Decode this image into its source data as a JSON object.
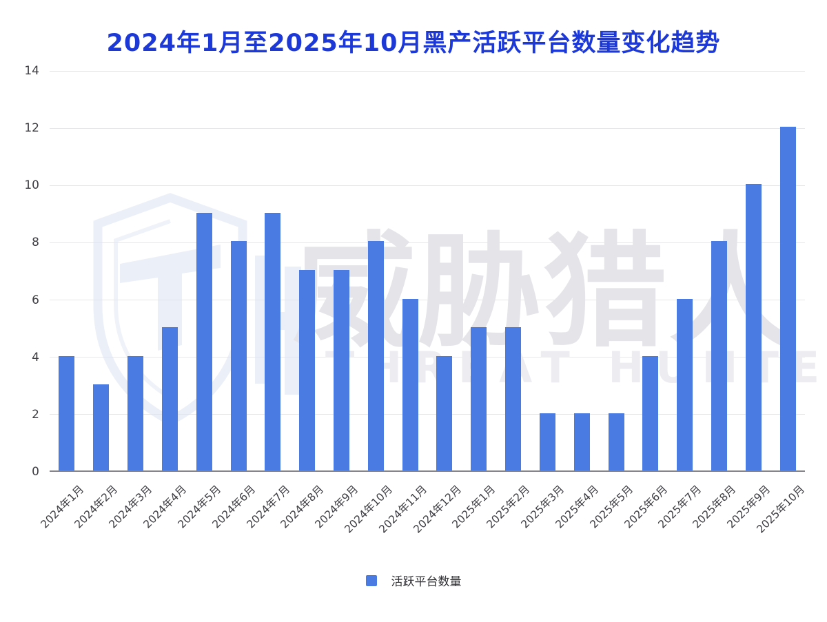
{
  "title": "2024年1月至2025年10月黑产活跃平台数量变化趋势",
  "colors": {
    "title": "#1C38D6",
    "bar": "#4A7BE3",
    "axis_label": "#3D3D42",
    "gridline": "#E6E6E9",
    "baseline": "#84848A"
  },
  "watermark": {
    "cn": "威胁猎人",
    "en": "THREAT HUNTER",
    "logo": "threat-hunter-shield"
  },
  "legend": {
    "label": "活跃平台数量"
  },
  "chart_data": {
    "type": "bar",
    "title": "2024年1月至2025年10月黑产活跃平台数量变化趋势",
    "categories": [
      "2024年1月",
      "2024年2月",
      "2024年3月",
      "2024年4月",
      "2024年5月",
      "2024年6月",
      "2024年7月",
      "2024年8月",
      "2024年9月",
      "2024年10月",
      "2024年11月",
      "2024年12月",
      "2025年1月",
      "2025年2月",
      "2025年3月",
      "2025年4月",
      "2025年5月",
      "2025年6月",
      "2025年7月",
      "2025年8月",
      "2025年9月",
      "2025年10月"
    ],
    "values": [
      4,
      3,
      4,
      5,
      9,
      8,
      9,
      7,
      7,
      8,
      6,
      4,
      5,
      5,
      2,
      2,
      2,
      4,
      6,
      8,
      10,
      12
    ],
    "series_name": "活跃平台数量",
    "xlabel": "",
    "ylabel": "",
    "ylim": [
      0,
      14
    ],
    "yticks": [
      0,
      2,
      4,
      6,
      8,
      10,
      12,
      14
    ],
    "grid": true,
    "legend_position": "bottom",
    "bar_color": "#4A7BE3"
  }
}
